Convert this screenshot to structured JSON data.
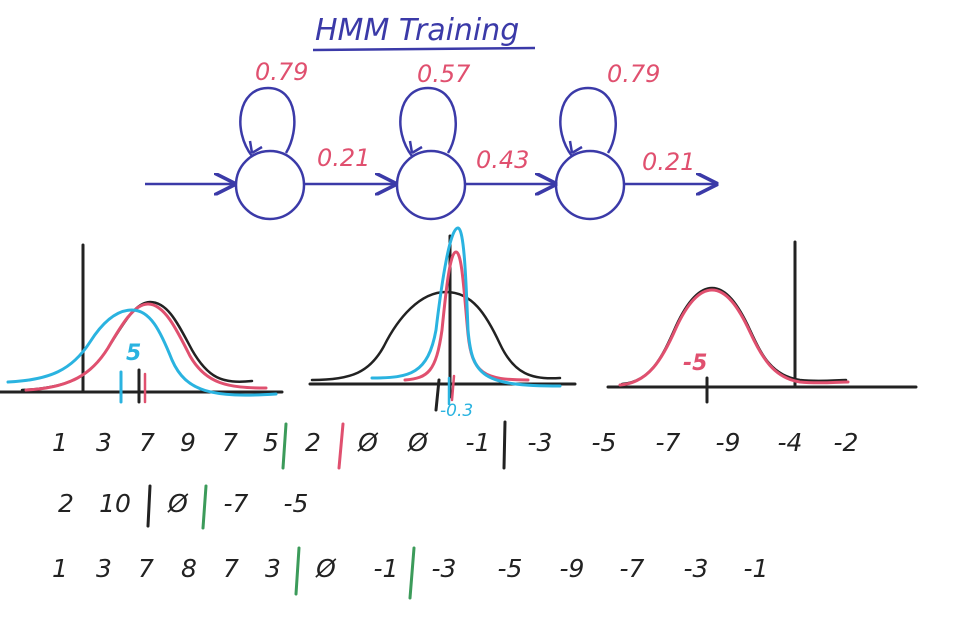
{
  "title": "HMM Training",
  "self_loops": [
    "0.79",
    "0.57",
    "0.79"
  ],
  "transitions": [
    "0.21",
    "0.43",
    "0.21"
  ],
  "curve_labels": {
    "state1": "5",
    "state2": "-0.3",
    "state3": "-5"
  },
  "sequences": [
    [
      "1",
      "3",
      "7",
      "9",
      "7",
      "5",
      "2",
      "Ø",
      "Ø",
      "-1",
      "-3",
      "-5",
      "-7",
      "-9",
      "-4",
      "-2"
    ],
    [
      "2",
      "10",
      "Ø",
      "-7",
      "-5"
    ],
    [
      "1",
      "3",
      "7",
      "8",
      "7",
      "3",
      "Ø",
      "-1",
      "-3",
      "-5",
      "-9",
      "-7",
      "-3",
      "-1"
    ]
  ],
  "colors": {
    "ink_blue": "#3b3aa8",
    "ink_red": "#e0506f",
    "ink_cyan": "#2ab3e0",
    "ink_green": "#3c9b5a",
    "ink_black": "#222222"
  }
}
